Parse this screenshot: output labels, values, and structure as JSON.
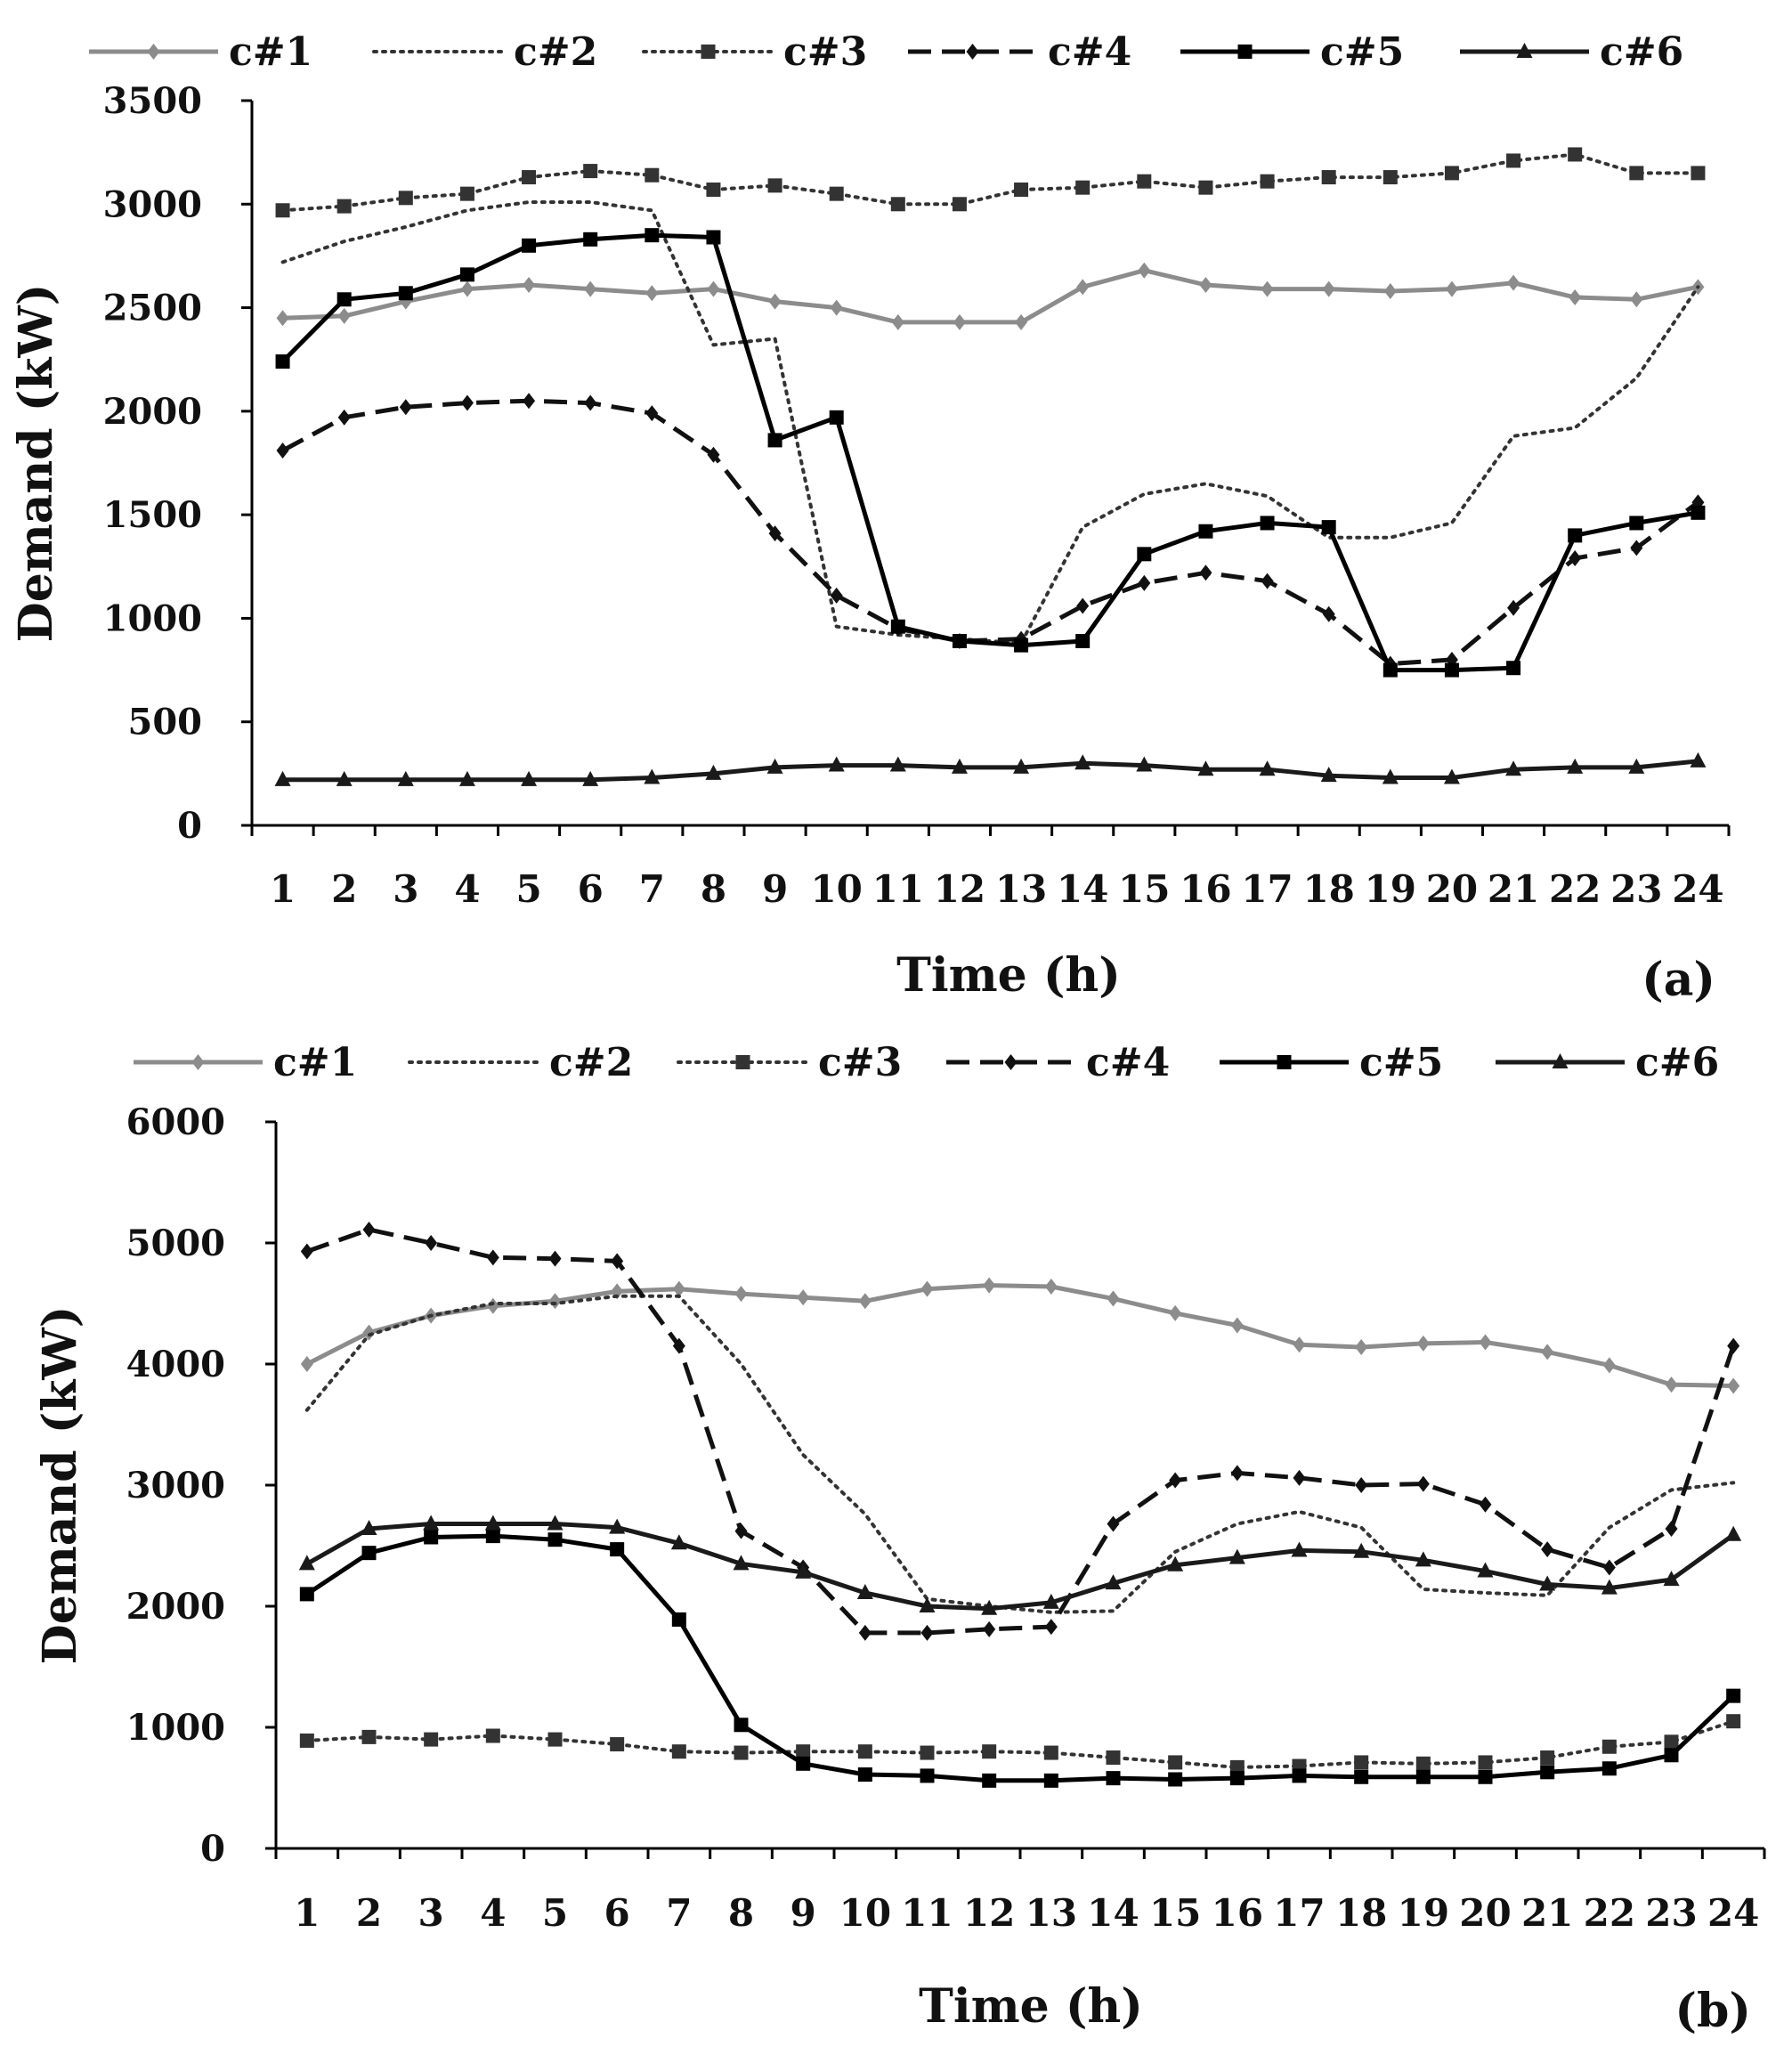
{
  "chart_data": [
    {
      "type": "line",
      "panel_label": "(a)",
      "xlabel": "Time (h)",
      "ylabel": "Demand (kW)",
      "ylim": [
        0,
        3500
      ],
      "yticks": [
        0,
        500,
        1000,
        1500,
        2000,
        2500,
        3000,
        3500
      ],
      "grid": false,
      "legend": "top",
      "categories": [
        "1",
        "2",
        "3",
        "4",
        "5",
        "6",
        "7",
        "8",
        "9",
        "10",
        "11",
        "12",
        "13",
        "14",
        "15",
        "16",
        "17",
        "18",
        "19",
        "20",
        "21",
        "22",
        "23",
        "24"
      ],
      "series": [
        {
          "name": "c#1",
          "color": "#8c8c8c",
          "style": "solid",
          "marker": "diamond",
          "values": [
            2450,
            2460,
            2530,
            2590,
            2610,
            2590,
            2570,
            2590,
            2530,
            2500,
            2430,
            2430,
            2430,
            2600,
            2680,
            2610,
            2590,
            2590,
            2580,
            2590,
            2620,
            2550,
            2540,
            2600
          ]
        },
        {
          "name": "c#2",
          "color": "#333333",
          "style": "dotted",
          "marker": "none",
          "values": [
            2720,
            2820,
            2890,
            2970,
            3010,
            3010,
            2970,
            2320,
            2350,
            960,
            920,
            900,
            880,
            1440,
            1600,
            1650,
            1590,
            1390,
            1390,
            1460,
            1880,
            1920,
            2160,
            2600
          ]
        },
        {
          "name": "c#3",
          "color": "#333333",
          "style": "dotted",
          "marker": "square",
          "values": [
            2970,
            2990,
            3030,
            3050,
            3130,
            3160,
            3140,
            3070,
            3090,
            3050,
            3000,
            3000,
            3070,
            3080,
            3110,
            3080,
            3110,
            3130,
            3130,
            3150,
            3210,
            3240,
            3150,
            3150
          ]
        },
        {
          "name": "c#4",
          "color": "#111111",
          "style": "dashed",
          "marker": "diamond",
          "values": [
            1810,
            1970,
            2020,
            2040,
            2050,
            2040,
            1990,
            1790,
            1410,
            1110,
            950,
            890,
            900,
            1060,
            1170,
            1220,
            1180,
            1020,
            780,
            800,
            1050,
            1290,
            1340,
            1560
          ]
        },
        {
          "name": "c#5",
          "color": "#000000",
          "style": "solid",
          "marker": "square",
          "values": [
            2240,
            2540,
            2570,
            2660,
            2800,
            2830,
            2850,
            2840,
            1860,
            1970,
            960,
            890,
            870,
            890,
            1310,
            1420,
            1460,
            1440,
            750,
            750,
            760,
            1400,
            1460,
            1510
          ]
        },
        {
          "name": "c#6",
          "color": "#1a1a1a",
          "style": "solid",
          "marker": "triangle",
          "values": [
            220,
            220,
            220,
            220,
            220,
            220,
            230,
            250,
            280,
            290,
            290,
            280,
            280,
            300,
            290,
            270,
            270,
            240,
            230,
            230,
            270,
            280,
            280,
            310
          ]
        }
      ]
    },
    {
      "type": "line",
      "panel_label": "(b)",
      "xlabel": "Time (h)",
      "ylabel": "Demand (kW)",
      "ylim": [
        0,
        6000
      ],
      "yticks": [
        0,
        1000,
        2000,
        3000,
        4000,
        5000,
        6000
      ],
      "grid": false,
      "legend": "top",
      "categories": [
        "1",
        "2",
        "3",
        "4",
        "5",
        "6",
        "7",
        "8",
        "9",
        "10",
        "11",
        "12",
        "13",
        "14",
        "15",
        "16",
        "17",
        "18",
        "19",
        "20",
        "21",
        "22",
        "23",
        "24"
      ],
      "series": [
        {
          "name": "c#1",
          "color": "#8c8c8c",
          "style": "solid",
          "marker": "diamond",
          "values": [
            4000,
            4260,
            4400,
            4480,
            4520,
            4600,
            4620,
            4580,
            4550,
            4520,
            4620,
            4650,
            4640,
            4540,
            4420,
            4320,
            4160,
            4140,
            4170,
            4180,
            4100,
            3990,
            3830,
            3820
          ]
        },
        {
          "name": "c#2",
          "color": "#333333",
          "style": "dotted",
          "marker": "none",
          "values": [
            3620,
            4240,
            4400,
            4500,
            4500,
            4560,
            4560,
            4000,
            3250,
            2760,
            2060,
            2000,
            1950,
            1960,
            2450,
            2680,
            2780,
            2650,
            2140,
            2110,
            2090,
            2650,
            2960,
            3020
          ]
        },
        {
          "name": "c#3",
          "color": "#333333",
          "style": "dotted",
          "marker": "square",
          "values": [
            890,
            920,
            900,
            930,
            900,
            860,
            800,
            790,
            800,
            800,
            790,
            800,
            790,
            750,
            710,
            670,
            680,
            710,
            700,
            710,
            750,
            840,
            880,
            1050
          ]
        },
        {
          "name": "c#4",
          "color": "#111111",
          "style": "dashed",
          "marker": "diamond",
          "values": [
            4930,
            5110,
            5000,
            4880,
            4870,
            4850,
            4150,
            2620,
            2320,
            1780,
            1780,
            1810,
            1830,
            2680,
            3040,
            3100,
            3060,
            3000,
            3010,
            2840,
            2470,
            2320,
            2640,
            4150
          ]
        },
        {
          "name": "c#5",
          "color": "#000000",
          "style": "solid",
          "marker": "square",
          "values": [
            2100,
            2440,
            2570,
            2580,
            2550,
            2470,
            1890,
            1020,
            700,
            610,
            600,
            560,
            560,
            580,
            570,
            580,
            600,
            590,
            590,
            590,
            630,
            660,
            770,
            1260
          ]
        },
        {
          "name": "c#6",
          "color": "#1a1a1a",
          "style": "solid",
          "marker": "triangle",
          "values": [
            2350,
            2640,
            2680,
            2680,
            2680,
            2650,
            2520,
            2350,
            2280,
            2110,
            2000,
            1980,
            2030,
            2190,
            2340,
            2400,
            2460,
            2450,
            2380,
            2290,
            2180,
            2150,
            2220,
            2590
          ]
        }
      ]
    }
  ]
}
